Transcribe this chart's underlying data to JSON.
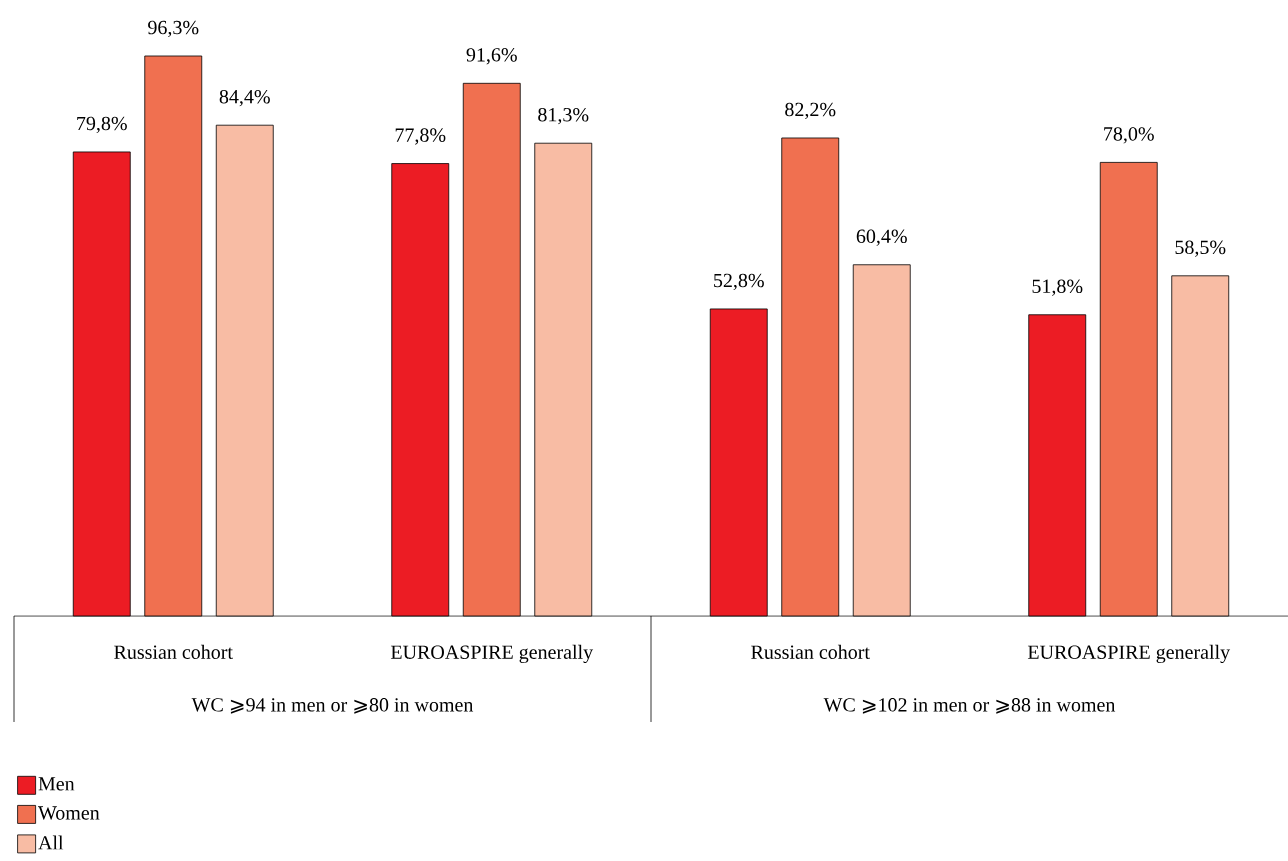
{
  "chart_data": {
    "type": "bar",
    "categories": [
      "Russian cohort",
      "EUROASPIRE generally",
      "Russian cohort",
      "EUROASPIRE generally"
    ],
    "series": [
      {
        "name": "Men",
        "color": "#ec1c24",
        "values": [
          79.8,
          77.8,
          52.8,
          51.8
        ],
        "value_labels": [
          "79,8%",
          "77,8%",
          "52,8%",
          "51,8%"
        ]
      },
      {
        "name": "Women",
        "color": "#f07050",
        "values": [
          96.3,
          91.6,
          82.2,
          78.0
        ],
        "value_labels": [
          "96,3%",
          "91,6%",
          "82,2%",
          "78,0%"
        ]
      },
      {
        "name": "All",
        "color": "#f8bca4",
        "values": [
          84.4,
          81.3,
          60.4,
          58.5
        ],
        "value_labels": [
          "84,4%",
          "81,3%",
          "60,4%",
          "58,5%"
        ]
      }
    ],
    "annotations": [
      "WC ⩾94 in men or ⩾80 in women",
      "WC ⩾102 in men or ⩾88 in women"
    ],
    "legend": "bottom left"
  }
}
